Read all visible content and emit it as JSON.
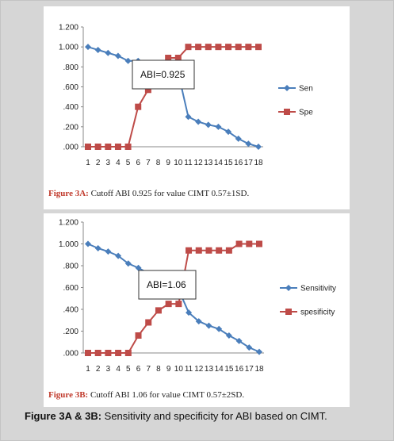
{
  "figure_caption": {
    "label": "Figure 3A & 3B:",
    "text": "Sensitivity and specificity for ABI based on CIMT."
  },
  "chart_data": [
    {
      "type": "line",
      "categories": [
        "1",
        "2",
        "3",
        "4",
        "5",
        "6",
        "7",
        "8",
        "9",
        "10",
        "11",
        "12",
        "13",
        "14",
        "15",
        "16",
        "17",
        "18"
      ],
      "y_ticks": [
        "1.200",
        "1.000",
        ".800",
        ".600",
        ".400",
        ".200",
        ".000"
      ],
      "ylim": [
        0,
        1.2
      ],
      "series": [
        {
          "name": "Sen",
          "color": "#4a7ebb",
          "marker": "diamond",
          "values": [
            1.0,
            0.97,
            0.94,
            0.91,
            0.86,
            0.86,
            0.83,
            0.81,
            0.78,
            0.74,
            0.3,
            0.25,
            0.22,
            0.2,
            0.15,
            0.08,
            0.03,
            0.0
          ]
        },
        {
          "name": "Spe",
          "color": "#be4b48",
          "marker": "square",
          "values": [
            0.0,
            0.0,
            0.0,
            0.0,
            0.0,
            0.4,
            0.57,
            0.63,
            0.89,
            0.89,
            1.0,
            1.0,
            1.0,
            1.0,
            1.0,
            1.0,
            1.0,
            1.0
          ]
        }
      ],
      "legend_entries": [
        "Sen",
        "Spe"
      ],
      "annotation": "ABI=0.925",
      "legend_position": "right",
      "caption_label": "Figure 3A:",
      "caption_text": "Cutoff ABI 0.925 for value CIMT 0.57±1SD."
    },
    {
      "type": "line",
      "categories": [
        "1",
        "2",
        "3",
        "4",
        "5",
        "6",
        "7",
        "8",
        "9",
        "10",
        "11",
        "12",
        "13",
        "14",
        "15",
        "16",
        "17",
        "18"
      ],
      "y_ticks": [
        "1.200",
        "1.000",
        ".800",
        ".600",
        ".400",
        ".200",
        ".000"
      ],
      "ylim": [
        0,
        1.2
      ],
      "series": [
        {
          "name": "Sensitivity",
          "color": "#4a7ebb",
          "marker": "diamond",
          "values": [
            1.0,
            0.96,
            0.93,
            0.89,
            0.82,
            0.78,
            0.73,
            0.67,
            0.63,
            0.58,
            0.37,
            0.29,
            0.25,
            0.22,
            0.16,
            0.11,
            0.05,
            0.01
          ]
        },
        {
          "name": "specificity",
          "color": "#be4b48",
          "marker": "square",
          "values": [
            0.0,
            0.0,
            0.0,
            0.0,
            0.0,
            0.16,
            0.28,
            0.39,
            0.45,
            0.45,
            0.94,
            0.94,
            0.94,
            0.94,
            0.94,
            1.0,
            1.0,
            1.0
          ]
        }
      ],
      "legend_entries": [
        "Sensitivity",
        "spesificity"
      ],
      "annotation": "ABI=1.06",
      "legend_position": "right",
      "caption_label": "Figure 3B:",
      "caption_text": "Cutoff ABI 1.06 for value CIMT 0.57±2SD."
    }
  ]
}
